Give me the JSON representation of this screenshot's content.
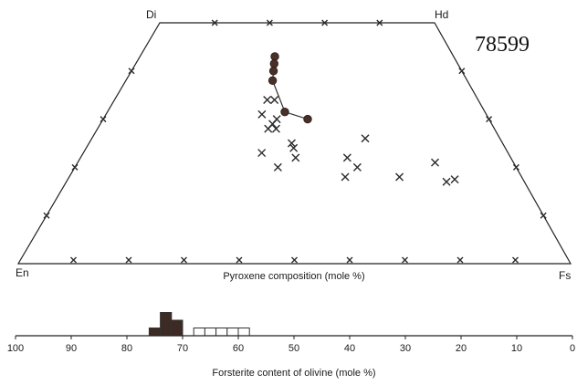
{
  "sample_label": "78599",
  "chart_data": [
    {
      "type": "scatter",
      "title": "",
      "xlabel": "Pyroxene composition (mole %)",
      "corners": {
        "top_left": "Di",
        "top_right": "Hd",
        "bottom_left": "En",
        "bottom_right": "Fs"
      },
      "axes": {
        "wo_percent_range": [
          0,
          50
        ],
        "fs_percent_range": [
          0,
          100
        ]
      },
      "pyroxene_points": [
        {
          "fs": 42,
          "wo": 34
        },
        {
          "fs": 41,
          "wo": 31
        },
        {
          "fs": 44,
          "wo": 34
        },
        {
          "fs": 45,
          "wo": 30
        },
        {
          "fs": 44,
          "wo": 29
        },
        {
          "fs": 45,
          "wo": 28
        },
        {
          "fs": 43,
          "wo": 28
        },
        {
          "fs": 49,
          "wo": 25
        },
        {
          "fs": 49.5,
          "wo": 24
        },
        {
          "fs": 50,
          "wo": 22
        },
        {
          "fs": 42,
          "wo": 23
        },
        {
          "fs": 46,
          "wo": 20
        },
        {
          "fs": 67,
          "wo": 26
        },
        {
          "fs": 62,
          "wo": 22
        },
        {
          "fs": 64,
          "wo": 20
        },
        {
          "fs": 61,
          "wo": 18
        },
        {
          "fs": 73,
          "wo": 18
        },
        {
          "fs": 82,
          "wo": 21
        },
        {
          "fs": 83,
          "wo": 17
        },
        {
          "fs": 85,
          "wo": 17.5
        }
      ],
      "trend_points": [
        {
          "fs": 43,
          "wo": 43
        },
        {
          "fs": 43,
          "wo": 41.5
        },
        {
          "fs": 43,
          "wo": 40
        },
        {
          "fs": 43,
          "wo": 38
        },
        {
          "fs": 47,
          "wo": 31.5
        },
        {
          "fs": 53,
          "wo": 30
        }
      ]
    },
    {
      "type": "bar",
      "title": "",
      "xlabel": "Forsterite content of olivine (mole %)",
      "xlim": [
        100,
        0
      ],
      "x_ticks": [
        "100",
        "90",
        "80",
        "70",
        "60",
        "50",
        "40",
        "30",
        "20",
        "10",
        "0"
      ],
      "bin_width": 2,
      "bars": [
        {
          "x_start": 74,
          "count": 1,
          "filled": true
        },
        {
          "x_start": 72,
          "count": 3,
          "filled": true
        },
        {
          "x_start": 70,
          "count": 2,
          "filled": true
        },
        {
          "x_start": 66,
          "count": 1,
          "filled": false
        },
        {
          "x_start": 64,
          "count": 1,
          "filled": false
        },
        {
          "x_start": 62,
          "count": 1,
          "filled": false
        },
        {
          "x_start": 60,
          "count": 1,
          "filled": false
        },
        {
          "x_start": 58,
          "count": 1,
          "filled": false
        }
      ],
      "colors": {
        "filled": "#3d2a24",
        "open": "#ffffff"
      }
    }
  ]
}
